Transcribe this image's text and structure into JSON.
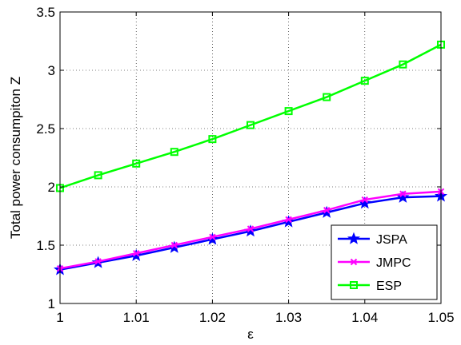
{
  "chart_data": {
    "type": "line",
    "title": "",
    "xlabel": "ε",
    "ylabel": "Total power consumpiton Z",
    "xlim": [
      1,
      1.05
    ],
    "ylim": [
      1,
      3.5
    ],
    "xticks": [
      1,
      1.01,
      1.02,
      1.03,
      1.04,
      1.05
    ],
    "xtick_labels": [
      "1",
      "1.01",
      "1.02",
      "1.03",
      "1.04",
      "1.05"
    ],
    "yticks": [
      1,
      1.5,
      2,
      2.5,
      3,
      3.5
    ],
    "ytick_labels": [
      "1",
      "1.5",
      "2",
      "2.5",
      "3",
      "3.5"
    ],
    "grid": true,
    "legend_position": "bottom-right",
    "x": [
      1.0,
      1.005,
      1.01,
      1.015,
      1.02,
      1.025,
      1.03,
      1.035,
      1.04,
      1.045,
      1.05
    ],
    "series": [
      {
        "name": "JSPA",
        "color": "#0000ff",
        "marker": "star",
        "values": [
          1.29,
          1.35,
          1.41,
          1.48,
          1.55,
          1.62,
          1.7,
          1.78,
          1.86,
          1.91,
          1.92
        ]
      },
      {
        "name": "JMPC",
        "color": "#ff00ff",
        "marker": "x",
        "values": [
          1.3,
          1.36,
          1.43,
          1.5,
          1.57,
          1.64,
          1.72,
          1.8,
          1.89,
          1.94,
          1.96
        ]
      },
      {
        "name": "ESP",
        "color": "#00ff00",
        "marker": "square",
        "values": [
          1.99,
          2.1,
          2.2,
          2.3,
          2.41,
          2.53,
          2.65,
          2.77,
          2.91,
          3.05,
          3.22
        ]
      }
    ]
  }
}
